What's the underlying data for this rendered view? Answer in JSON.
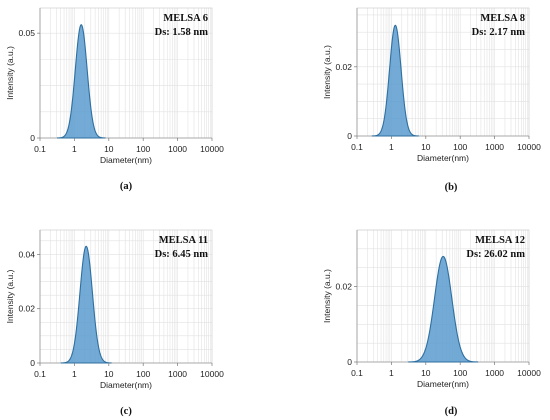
{
  "chart_data": [
    {
      "type": "area",
      "panel": "(a)",
      "title": "MELSA 6",
      "annotation": "Ds: 1.58 nm",
      "xlabel": "Diameter(nm)",
      "ylabel": "Intensity (a.u.)",
      "xscale": "log",
      "xlim": [
        0.1,
        10000
      ],
      "x_ticks": [
        "0.1",
        "1",
        "10",
        "100",
        "1000",
        "10000"
      ],
      "ylim": [
        0,
        0.062
      ],
      "y_ticks": [
        {
          "value": 0,
          "label": "0"
        },
        {
          "value": 0.05,
          "label": "0.05"
        }
      ],
      "peak": {
        "x": 1.58,
        "y": 0.054
      },
      "grid": true,
      "color": "#5a9bcf"
    },
    {
      "type": "area",
      "panel": "(b)",
      "title": "MELSA 8",
      "annotation": "Ds: 2.17 nm",
      "xlabel": "Diameter(nm)",
      "ylabel": "Intensity (a.u.)",
      "xscale": "log",
      "xlim": [
        0.1,
        10000
      ],
      "x_ticks": [
        "0.1",
        "1",
        "10",
        "100",
        "1000",
        "10000"
      ],
      "ylim": [
        0,
        0.037
      ],
      "y_ticks": [
        {
          "value": 0,
          "label": "0"
        },
        {
          "value": 0.02,
          "label": "0.02"
        }
      ],
      "peak": {
        "x": 1.3,
        "y": 0.032
      },
      "grid": true,
      "color": "#5a9bcf"
    },
    {
      "type": "area",
      "panel": "(c)",
      "title": "MELSA 11",
      "annotation": "Ds: 6.45 nm",
      "xlabel": "Diameter(nm)",
      "ylabel": "Intensity (a.u.)",
      "xscale": "log",
      "xlim": [
        0.1,
        10000
      ],
      "x_ticks": [
        "0.1",
        "1",
        "10",
        "100",
        "1000",
        "10000"
      ],
      "ylim": [
        0,
        0.049
      ],
      "y_ticks": [
        {
          "value": 0,
          "label": "0"
        },
        {
          "value": 0.02,
          "label": "0.02"
        },
        {
          "value": 0.04,
          "label": "0.04"
        }
      ],
      "peak": {
        "x": 2.2,
        "y": 0.043
      },
      "grid": true,
      "color": "#5a9bcf"
    },
    {
      "type": "area",
      "panel": "(d)",
      "title": "MELSA 12",
      "annotation": "Ds: 26.02 nm",
      "xlabel": "Diameter(nm)",
      "ylabel": "Intensity (a.u.)",
      "xscale": "log",
      "xlim": [
        0.1,
        10000
      ],
      "x_ticks": [
        "0.1",
        "1",
        "10",
        "100",
        "1000",
        "10000"
      ],
      "ylim": [
        0,
        0.035
      ],
      "y_ticks": [
        {
          "value": 0,
          "label": "0"
        },
        {
          "value": 0.02,
          "label": "0.02"
        }
      ],
      "peak": {
        "x": 32,
        "y": 0.028
      },
      "grid": true,
      "color": "#5a9bcf"
    }
  ]
}
